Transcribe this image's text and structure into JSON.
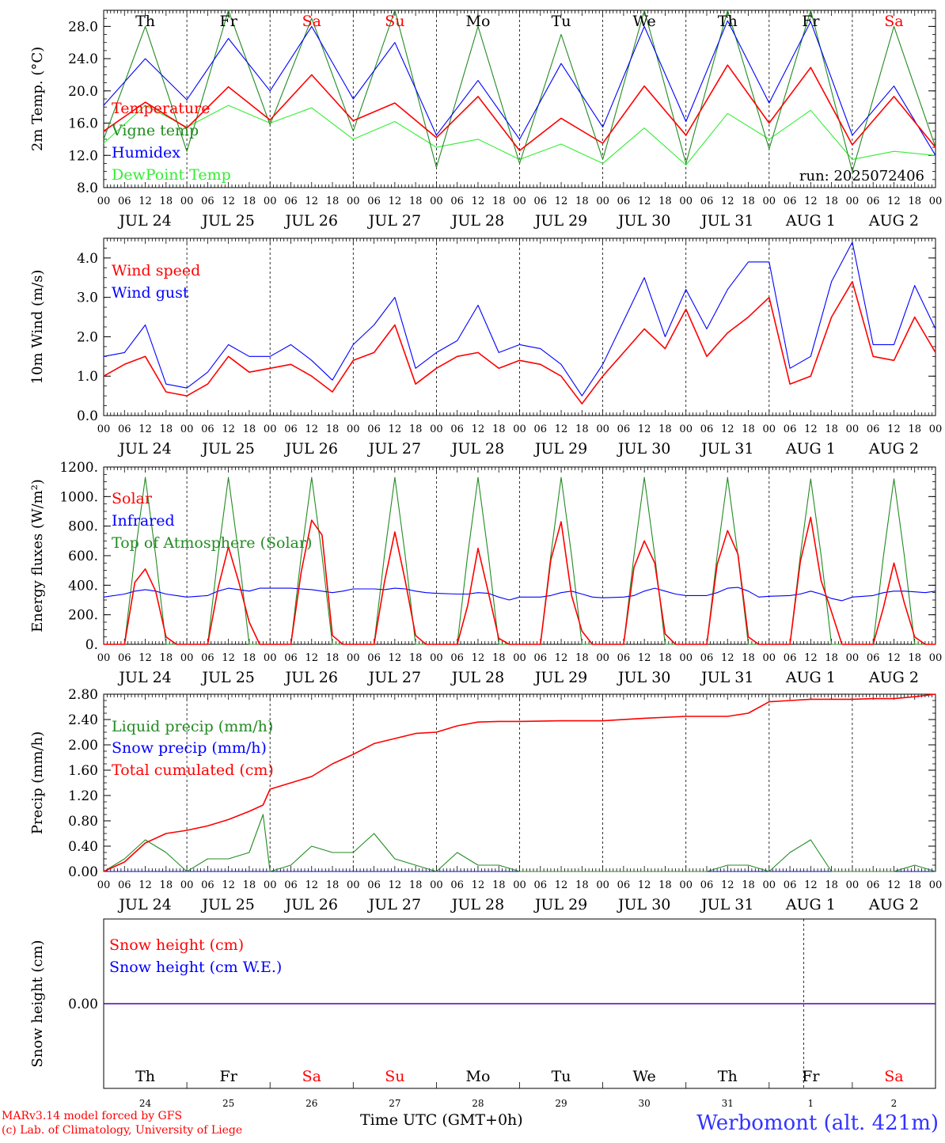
{
  "run_label": "run: 2025072406",
  "footer": {
    "credit_line1": "MARv3.14 model forced by GFS",
    "credit_line2": "(c) Lab. of Climatology, University of Liege",
    "time_label": "Time UTC (GMT+0h)",
    "station": "Werbomont (alt. 421m)"
  },
  "days": {
    "weekdays": [
      "Th",
      "Fr",
      "Sa",
      "Su",
      "Mo",
      "Tu",
      "We",
      "Th",
      "Fr",
      "Sa"
    ],
    "weekend_flags": [
      false,
      false,
      true,
      true,
      false,
      false,
      false,
      false,
      false,
      true
    ],
    "dates": [
      "JUL 24",
      "JUL 25",
      "JUL 26",
      "JUL 27",
      "JUL 28",
      "JUL 29",
      "JUL 30",
      "JUL 31",
      "AUG  1",
      "AUG  2"
    ],
    "day_numbers": [
      "24",
      "25",
      "26",
      "27",
      "28",
      "29",
      "30",
      "31",
      "1",
      "2"
    ],
    "hour_ticks": [
      "00",
      "06",
      "12",
      "18"
    ],
    "final_hour": "00"
  },
  "colors": {
    "red": "#ff0000",
    "green": "#228b22",
    "blue": "#0000ff",
    "lightgreen": "#33ee33",
    "weekend": "#ff0000"
  },
  "chart_data": [
    {
      "type": "line",
      "ylabel": "2m Temp. (°C)",
      "ylim": [
        8,
        30
      ],
      "yticks": [
        "8.0",
        "12.0",
        "16.0",
        "20.0",
        "24.0",
        "28.0"
      ],
      "ytick_values": [
        8,
        12,
        16,
        20,
        24,
        28
      ],
      "x_hours": [
        0,
        12,
        24,
        36,
        48,
        60,
        72,
        84,
        96,
        108,
        120,
        132,
        144,
        156,
        168,
        180,
        192,
        204,
        216,
        228,
        240
      ],
      "series": [
        {
          "name": "Temperature",
          "color": "#ff0000",
          "values": [
            15.0,
            18.6,
            15.4,
            20.5,
            16.4,
            22.0,
            16.3,
            18.5,
            14.2,
            19.3,
            12.6,
            16.6,
            13.5,
            20.6,
            14.5,
            23.2,
            16.0,
            22.9,
            13.3,
            19.3,
            13.0
          ]
        },
        {
          "name": "Vigne temp",
          "color": "#228b22",
          "values": [
            14.0,
            28.0,
            12.5,
            31.0,
            15.8,
            29.0,
            15.0,
            31.0,
            10.5,
            28.0,
            11.0,
            27.0,
            11.5,
            31.0,
            11.0,
            31.0,
            12.8,
            31.0,
            10.0,
            28.0,
            13.0
          ]
        },
        {
          "name": "Humidex",
          "color": "#0000ff",
          "values": [
            18.2,
            24.0,
            18.9,
            26.5,
            20.0,
            28.0,
            19.0,
            26.0,
            14.5,
            21.3,
            14.0,
            23.4,
            15.5,
            28.0,
            16.2,
            28.7,
            18.5,
            28.6,
            14.5,
            20.6,
            12.0
          ]
        },
        {
          "name": "DewPoint Temp",
          "color": "#33ee33",
          "values": [
            13.5,
            18.2,
            15.5,
            18.2,
            16.0,
            17.9,
            14.0,
            16.2,
            13.0,
            14.0,
            11.5,
            13.4,
            11.0,
            15.4,
            10.8,
            17.2,
            14.0,
            17.6,
            11.5,
            12.5,
            12.0
          ]
        }
      ]
    },
    {
      "type": "line",
      "ylabel": "10m Wind (m/s)",
      "ylim": [
        0,
        4.5
      ],
      "yticks": [
        "0.0",
        "1.0",
        "2.0",
        "3.0",
        "4.0"
      ],
      "ytick_values": [
        0,
        1,
        2,
        3,
        4
      ],
      "x_hours": [
        0,
        6,
        12,
        18,
        24,
        30,
        36,
        42,
        48,
        54,
        60,
        66,
        72,
        78,
        84,
        90,
        96,
        102,
        108,
        114,
        120,
        126,
        132,
        138,
        144,
        150,
        156,
        162,
        168,
        174,
        180,
        186,
        192,
        198,
        204,
        210,
        216,
        222,
        228,
        234,
        240
      ],
      "series": [
        {
          "name": "Wind speed",
          "color": "#ff0000",
          "values": [
            1.0,
            1.3,
            1.5,
            0.6,
            0.5,
            0.8,
            1.5,
            1.1,
            1.2,
            1.3,
            1.0,
            0.6,
            1.4,
            1.6,
            2.3,
            0.8,
            1.2,
            1.5,
            1.6,
            1.2,
            1.4,
            1.3,
            1.0,
            0.3,
            1.0,
            1.6,
            2.2,
            1.7,
            2.7,
            1.5,
            2.1,
            2.5,
            3.0,
            0.8,
            1.0,
            2.5,
            3.4,
            1.5,
            1.4,
            2.5,
            1.6
          ]
        },
        {
          "name": "Wind gust",
          "color": "#0000ff",
          "values": [
            1.5,
            1.6,
            2.3,
            0.8,
            0.7,
            1.1,
            1.8,
            1.5,
            1.5,
            1.8,
            1.4,
            0.9,
            1.8,
            2.3,
            3.0,
            1.2,
            1.6,
            1.9,
            2.8,
            1.6,
            1.8,
            1.7,
            1.3,
            0.5,
            1.3,
            2.4,
            3.5,
            2.0,
            3.2,
            2.2,
            3.2,
            3.9,
            3.9,
            1.2,
            1.5,
            3.4,
            4.4,
            1.8,
            1.8,
            3.3,
            2.2
          ]
        }
      ]
    },
    {
      "type": "line",
      "ylabel": "Energy fluxes (W/m²)",
      "ylim": [
        0,
        1200
      ],
      "yticks": [
        "0.",
        "200.",
        "400.",
        "600.",
        "800.",
        "1000.",
        "1200."
      ],
      "ytick_values": [
        0,
        200,
        400,
        600,
        800,
        1000,
        1200
      ],
      "x_hours": [
        0,
        6,
        9,
        12,
        15,
        18,
        21,
        24,
        30,
        33,
        36,
        39,
        42,
        45,
        48,
        54,
        57,
        60,
        63,
        66,
        69,
        72,
        78,
        81,
        84,
        87,
        90,
        93,
        96,
        102,
        105,
        108,
        111,
        114,
        117,
        120,
        126,
        129,
        132,
        135,
        138,
        141,
        144,
        150,
        153,
        156,
        159,
        162,
        165,
        168,
        174,
        177,
        180,
        183,
        186,
        189,
        192,
        198,
        201,
        204,
        207,
        210,
        213,
        216,
        222,
        225,
        228,
        231,
        234,
        237,
        240
      ],
      "series": [
        {
          "name": "Solar",
          "color": "#ff0000",
          "values": [
            0,
            0,
            420,
            510,
            360,
            50,
            0,
            0,
            0,
            380,
            660,
            420,
            150,
            0,
            0,
            0,
            490,
            840,
            740,
            60,
            0,
            0,
            0,
            420,
            760,
            430,
            60,
            0,
            0,
            0,
            260,
            650,
            350,
            40,
            0,
            0,
            0,
            570,
            830,
            330,
            90,
            0,
            0,
            0,
            520,
            700,
            550,
            70,
            0,
            0,
            0,
            540,
            770,
            610,
            50,
            0,
            0,
            0,
            560,
            860,
            430,
            220,
            0,
            0,
            0,
            250,
            550,
            280,
            50,
            0,
            0
          ]
        },
        {
          "name": "Infrared",
          "color": "#0000ff",
          "values": [
            320,
            340,
            360,
            370,
            360,
            340,
            330,
            320,
            330,
            360,
            380,
            370,
            360,
            380,
            380,
            380,
            375,
            370,
            360,
            350,
            360,
            375,
            375,
            370,
            380,
            375,
            360,
            350,
            345,
            340,
            340,
            350,
            345,
            320,
            300,
            320,
            320,
            330,
            350,
            360,
            340,
            320,
            315,
            320,
            330,
            360,
            380,
            360,
            340,
            330,
            330,
            350,
            380,
            385,
            360,
            320,
            325,
            330,
            340,
            360,
            340,
            310,
            295,
            320,
            330,
            350,
            360,
            360,
            355,
            350,
            360
          ]
        },
        {
          "name": "Top of Atmosphere (Solar)",
          "color": "#228b22",
          "values": [
            0,
            0,
            600,
            1130,
            600,
            0,
            0,
            0,
            0,
            600,
            1130,
            600,
            0,
            0,
            0,
            0,
            600,
            1130,
            600,
            0,
            0,
            0,
            0,
            600,
            1130,
            600,
            0,
            0,
            0,
            0,
            600,
            1130,
            600,
            0,
            0,
            0,
            0,
            600,
            1130,
            600,
            0,
            0,
            0,
            0,
            600,
            1130,
            600,
            0,
            0,
            0,
            0,
            600,
            1130,
            600,
            0,
            0,
            0,
            0,
            600,
            1120,
            600,
            0,
            0,
            0,
            0,
            600,
            1120,
            600,
            0,
            0,
            0
          ]
        }
      ]
    },
    {
      "type": "line",
      "ylabel": "Precip (mm/h)",
      "ylim": [
        0,
        2.8
      ],
      "yticks": [
        "0.00",
        "0.40",
        "0.80",
        "1.20",
        "1.60",
        "2.00",
        "2.40",
        "2.80"
      ],
      "ytick_values": [
        0,
        0.4,
        0.8,
        1.2,
        1.6,
        2.0,
        2.4,
        2.8
      ],
      "x_hours": [
        0,
        6,
        12,
        18,
        24,
        30,
        36,
        42,
        46,
        48,
        54,
        60,
        66,
        72,
        78,
        84,
        90,
        96,
        102,
        108,
        114,
        120,
        132,
        144,
        156,
        168,
        174,
        180,
        186,
        192,
        198,
        204,
        210,
        216,
        222,
        228,
        234,
        240
      ],
      "series": [
        {
          "name": "Liquid precip (mm/h)",
          "color": "#228b22",
          "values": [
            0,
            0.2,
            0.5,
            0.3,
            0.0,
            0.2,
            0.2,
            0.3,
            0.9,
            0.0,
            0.1,
            0.4,
            0.3,
            0.3,
            0.6,
            0.2,
            0.1,
            0.0,
            0.3,
            0.1,
            0.1,
            0.0,
            0.0,
            0.0,
            0.0,
            0.0,
            0.0,
            0.1,
            0.1,
            0.0,
            0.3,
            0.5,
            0.0,
            0.0,
            0.0,
            0.0,
            0.1,
            0.0
          ]
        },
        {
          "name": "Snow precip (mm/h)",
          "color": "#0000ff",
          "values": [
            0,
            0,
            0,
            0,
            0,
            0,
            0,
            0,
            0,
            0,
            0,
            0,
            0,
            0,
            0,
            0,
            0,
            0,
            0,
            0,
            0,
            0,
            0,
            0,
            0,
            0,
            0,
            0,
            0,
            0,
            0,
            0,
            0,
            0,
            0,
            0,
            0,
            0
          ]
        },
        {
          "name": "Total cumulated (cm)",
          "color": "#ff0000",
          "values": [
            0,
            0.15,
            0.45,
            0.6,
            0.65,
            0.72,
            0.82,
            0.95,
            1.05,
            1.3,
            1.4,
            1.5,
            1.7,
            1.85,
            2.02,
            2.1,
            2.18,
            2.2,
            2.3,
            2.36,
            2.37,
            2.37,
            2.38,
            2.38,
            2.42,
            2.45,
            2.45,
            2.45,
            2.5,
            2.68,
            2.7,
            2.72,
            2.72,
            2.72,
            2.73,
            2.73,
            2.76,
            2.8
          ]
        }
      ]
    },
    {
      "type": "line",
      "ylabel": "Snow height (cm)",
      "ylim": [
        -1,
        1
      ],
      "yticks": [
        "0.00"
      ],
      "ytick_values": [
        0
      ],
      "x_hours": [
        0,
        240
      ],
      "series": [
        {
          "name": "Snow height (cm)",
          "color": "#ff0000",
          "values": [
            0,
            0
          ]
        },
        {
          "name": "Snow height (cm W.E.)",
          "color": "#0000ff",
          "values": [
            0,
            0
          ]
        }
      ]
    }
  ]
}
